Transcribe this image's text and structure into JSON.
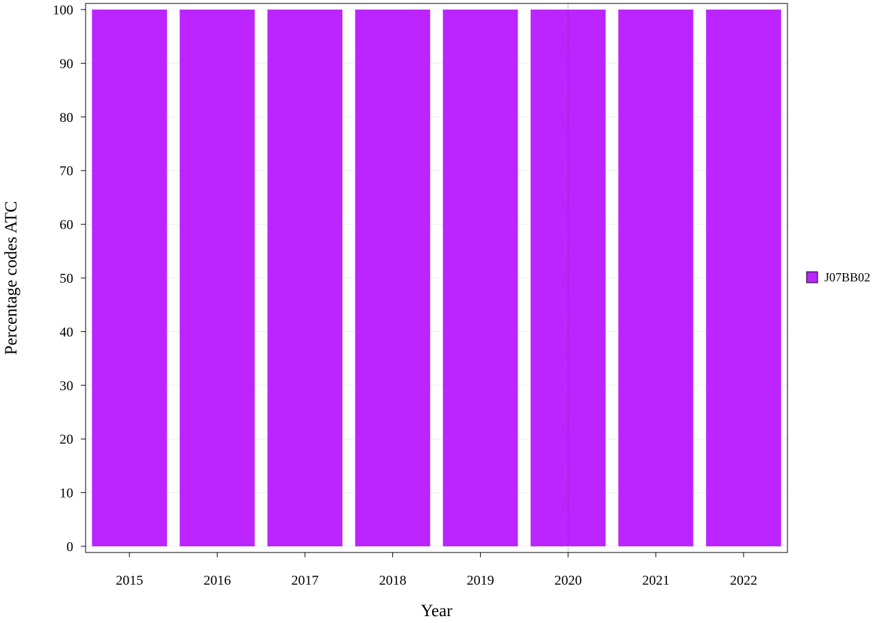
{
  "chart_data": {
    "type": "bar",
    "categories": [
      "2015",
      "2016",
      "2017",
      "2018",
      "2019",
      "2020",
      "2021",
      "2022"
    ],
    "series": [
      {
        "name": "J07BB02",
        "values": [
          100,
          100,
          100,
          100,
          100,
          100,
          100,
          100
        ],
        "color": "#bc25ff"
      }
    ],
    "title": "",
    "xlabel": "Year",
    "ylabel": "Percentage codes ATC",
    "ylim": [
      0,
      100
    ],
    "yticks": [
      0,
      10,
      20,
      30,
      40,
      50,
      60,
      70,
      80,
      90,
      100
    ],
    "grid": true,
    "legend_position": "right",
    "reference_line_x": "2020"
  }
}
